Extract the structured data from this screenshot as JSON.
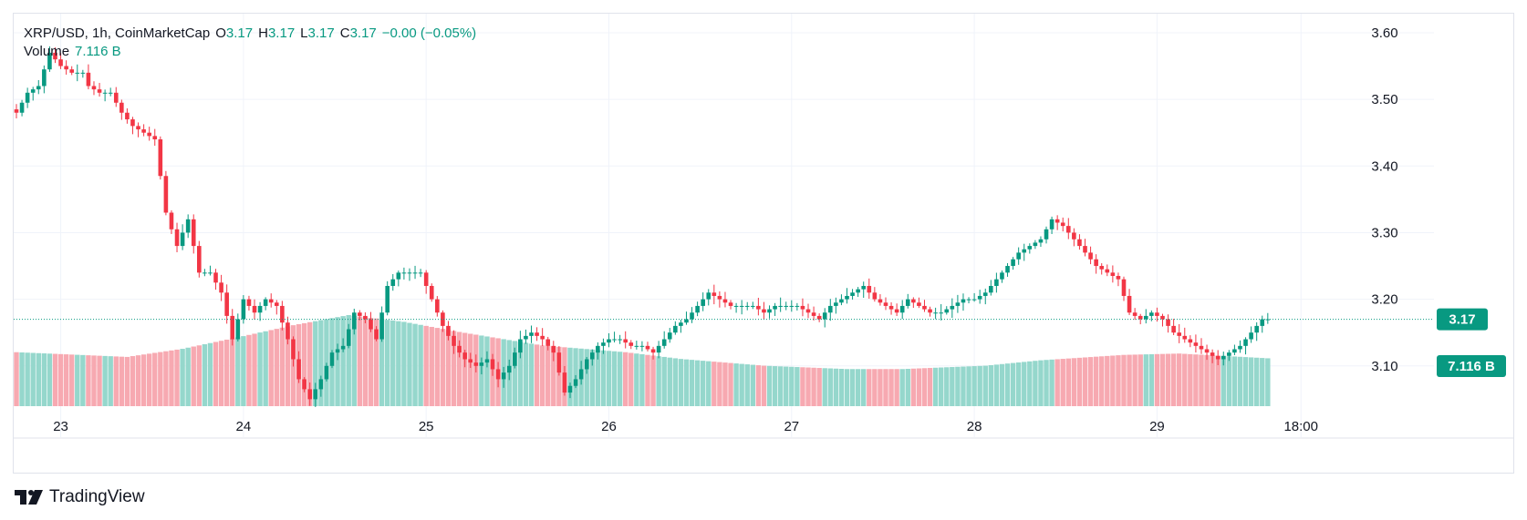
{
  "header": {
    "symbol": "XRP/USD, 1h, CoinMarketCap",
    "o_label": "O",
    "o_value": "3.17",
    "h_label": "H",
    "h_value": "3.17",
    "l_label": "L",
    "l_value": "3.17",
    "c_label": "C",
    "c_value": "3.17",
    "change": "−0.00 (−0.05%)",
    "volume_label": "Volume",
    "volume_value": "7.116 B"
  },
  "price_tag": "3.17",
  "volume_tag": "7.116 B",
  "brand": {
    "name": "TradingView"
  },
  "colors": {
    "up": "#089981",
    "down": "#f23645",
    "up_vol": "#95d7cc",
    "down_vol": "#f7a9b1",
    "grid": "#f0f3fa",
    "text": "#131722"
  },
  "chart_data": {
    "type": "candlestick",
    "ylim": [
      3.03,
      3.63
    ],
    "y_ticks": [
      "3.60",
      "3.50",
      "3.40",
      "3.30",
      "3.20",
      "3.10"
    ],
    "x_ticks": [
      "23",
      "24",
      "25",
      "26",
      "27",
      "28",
      "29",
      "18:00"
    ],
    "series": [
      {
        "name": "XRP/USD",
        "anchors": [
          [
            0,
            3.48
          ],
          [
            2,
            3.51
          ],
          [
            4,
            3.52
          ],
          [
            6,
            3.57
          ],
          [
            8,
            3.55
          ],
          [
            10,
            3.54
          ],
          [
            12,
            3.54
          ],
          [
            13,
            3.52
          ],
          [
            15,
            3.51
          ],
          [
            17,
            3.51
          ],
          [
            19,
            3.48
          ],
          [
            21,
            3.46
          ],
          [
            23,
            3.45
          ],
          [
            25,
            3.44
          ],
          [
            27,
            3.33
          ],
          [
            29,
            3.28
          ],
          [
            31,
            3.32
          ],
          [
            33,
            3.24
          ],
          [
            35,
            3.24
          ],
          [
            37,
            3.21
          ],
          [
            39,
            3.14
          ],
          [
            41,
            3.2
          ],
          [
            43,
            3.18
          ],
          [
            45,
            3.2
          ],
          [
            47,
            3.19
          ],
          [
            49,
            3.14
          ],
          [
            51,
            3.08
          ],
          [
            53,
            3.05
          ],
          [
            55,
            3.08
          ],
          [
            57,
            3.12
          ],
          [
            59,
            3.13
          ],
          [
            61,
            3.18
          ],
          [
            63,
            3.17
          ],
          [
            65,
            3.14
          ],
          [
            67,
            3.22
          ],
          [
            69,
            3.24
          ],
          [
            71,
            3.24
          ],
          [
            73,
            3.24
          ],
          [
            75,
            3.2
          ],
          [
            77,
            3.16
          ],
          [
            79,
            3.13
          ],
          [
            81,
            3.11
          ],
          [
            83,
            3.1
          ],
          [
            85,
            3.11
          ],
          [
            87,
            3.08
          ],
          [
            89,
            3.1
          ],
          [
            91,
            3.14
          ],
          [
            93,
            3.15
          ],
          [
            95,
            3.14
          ],
          [
            97,
            3.12
          ],
          [
            99,
            3.06
          ],
          [
            101,
            3.08
          ],
          [
            103,
            3.11
          ],
          [
            105,
            3.13
          ],
          [
            107,
            3.14
          ],
          [
            109,
            3.14
          ],
          [
            111,
            3.13
          ],
          [
            113,
            3.13
          ],
          [
            115,
            3.12
          ],
          [
            117,
            3.14
          ],
          [
            119,
            3.16
          ],
          [
            121,
            3.17
          ],
          [
            123,
            3.19
          ],
          [
            125,
            3.21
          ],
          [
            127,
            3.2
          ],
          [
            129,
            3.19
          ],
          [
            131,
            3.19
          ],
          [
            133,
            3.19
          ],
          [
            135,
            3.18
          ],
          [
            137,
            3.19
          ],
          [
            139,
            3.19
          ],
          [
            141,
            3.19
          ],
          [
            143,
            3.18
          ],
          [
            145,
            3.17
          ],
          [
            147,
            3.19
          ],
          [
            149,
            3.2
          ],
          [
            151,
            3.21
          ],
          [
            153,
            3.22
          ],
          [
            155,
            3.2
          ],
          [
            157,
            3.19
          ],
          [
            159,
            3.18
          ],
          [
            161,
            3.2
          ],
          [
            163,
            3.19
          ],
          [
            165,
            3.18
          ],
          [
            167,
            3.18
          ],
          [
            169,
            3.19
          ],
          [
            171,
            3.2
          ],
          [
            173,
            3.2
          ],
          [
            175,
            3.21
          ],
          [
            177,
            3.23
          ],
          [
            179,
            3.25
          ],
          [
            181,
            3.27
          ],
          [
            183,
            3.28
          ],
          [
            185,
            3.29
          ],
          [
            187,
            3.32
          ],
          [
            189,
            3.31
          ],
          [
            191,
            3.29
          ],
          [
            193,
            3.27
          ],
          [
            195,
            3.25
          ],
          [
            197,
            3.24
          ],
          [
            199,
            3.23
          ],
          [
            201,
            3.18
          ],
          [
            203,
            3.17
          ],
          [
            205,
            3.18
          ],
          [
            207,
            3.17
          ],
          [
            209,
            3.15
          ],
          [
            211,
            3.14
          ],
          [
            213,
            3.13
          ],
          [
            215,
            3.12
          ],
          [
            217,
            3.11
          ],
          [
            219,
            3.12
          ],
          [
            221,
            3.13
          ],
          [
            223,
            3.15
          ],
          [
            225,
            3.17
          ],
          [
            226,
            3.17
          ]
        ]
      },
      {
        "name": "Volume",
        "anchors": [
          [
            0,
            8.0
          ],
          [
            20,
            7.3
          ],
          [
            30,
            8.5
          ],
          [
            40,
            10.2
          ],
          [
            50,
            12.0
          ],
          [
            60,
            13.5
          ],
          [
            70,
            12.5
          ],
          [
            80,
            11.0
          ],
          [
            95,
            9.0
          ],
          [
            110,
            8.0
          ],
          [
            120,
            7.0
          ],
          [
            135,
            6.0
          ],
          [
            150,
            5.5
          ],
          [
            160,
            5.5
          ],
          [
            175,
            6.0
          ],
          [
            185,
            6.8
          ],
          [
            200,
            7.6
          ],
          [
            210,
            7.8
          ],
          [
            226,
            7.1
          ]
        ]
      }
    ],
    "current_price": 3.17,
    "current_volume": "7.116 B"
  }
}
